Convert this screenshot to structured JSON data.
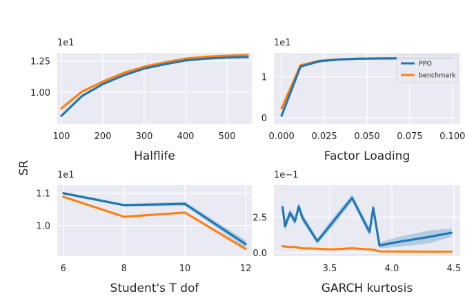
{
  "figure": {
    "ylabel": "SR"
  },
  "colors": {
    "panel_bg": "#eaeaf2",
    "grid": "#ffffff",
    "PPO": "#1f77b4",
    "benchmark": "#ff7f0e",
    "ppo_band": "#9ec2de"
  },
  "chart_data": [
    {
      "type": "line",
      "xlabel": "Halflife",
      "multiplier": "1e1",
      "xlim": [
        90,
        560
      ],
      "ylim": [
        0.745,
        1.315
      ],
      "xticks": [
        100,
        200,
        300,
        400,
        500
      ],
      "xtick_labels": [
        "100",
        "200",
        "300",
        "400",
        "500"
      ],
      "yticks": [
        1.0,
        1.25
      ],
      "ytick_labels": [
        "1.00",
        "1.25"
      ],
      "series": [
        {
          "name": "PPO",
          "x": [
            100,
            150,
            200,
            250,
            300,
            350,
            400,
            450,
            500,
            550
          ],
          "y": [
            0.81,
            0.97,
            1.065,
            1.135,
            1.19,
            1.225,
            1.255,
            1.27,
            1.278,
            1.283
          ],
          "band": [
            0.01,
            0.01,
            0.01,
            0.008,
            0.006,
            0.006,
            0.005,
            0.005,
            0.005,
            0.005
          ]
        },
        {
          "name": "benchmark",
          "x": [
            100,
            150,
            200,
            250,
            300,
            350,
            400,
            450,
            500,
            550
          ],
          "y": [
            0.87,
            1.005,
            1.085,
            1.155,
            1.205,
            1.24,
            1.27,
            1.285,
            1.293,
            1.3
          ]
        }
      ]
    },
    {
      "type": "line",
      "xlabel": "Factor Loading",
      "multiplier": "1e1",
      "xlim": [
        -0.0045,
        0.1045
      ],
      "ylim": [
        -0.15,
        1.58
      ],
      "xticks": [
        0.0,
        0.025,
        0.05,
        0.075,
        0.1
      ],
      "xtick_labels": [
        "0.000",
        "0.025",
        "0.050",
        "0.075",
        "0.100"
      ],
      "yticks": [
        0,
        1
      ],
      "ytick_labels": [
        "0",
        "1"
      ],
      "legend": {
        "position": "top-right",
        "entries": [
          "PPO",
          "benchmark"
        ]
      },
      "series": [
        {
          "name": "PPO",
          "x": [
            0.0,
            0.0111,
            0.0222,
            0.0333,
            0.0444,
            0.0556,
            0.0667,
            0.0778,
            0.0889,
            0.1
          ],
          "y": [
            0.05,
            1.25,
            1.38,
            1.42,
            1.44,
            1.445,
            1.448,
            1.45,
            1.451,
            1.452
          ]
        },
        {
          "name": "benchmark",
          "x": [
            0.0,
            0.0111,
            0.0222,
            0.0333,
            0.0444,
            0.0556,
            0.0667,
            0.0778,
            0.0889,
            0.1
          ],
          "y": [
            0.23,
            1.28,
            1.39,
            1.425,
            1.442,
            1.448,
            1.45,
            1.451,
            1.452,
            1.453
          ]
        }
      ]
    },
    {
      "type": "line",
      "xlabel": "Student's T dof",
      "multiplier": "1e1",
      "xlim": [
        5.8,
        12.2
      ],
      "ylim": [
        0.905,
        1.125
      ],
      "xticks": [
        6,
        8,
        10,
        12
      ],
      "xtick_labels": [
        "6",
        "8",
        "10",
        "12"
      ],
      "yticks": [
        1.0,
        1.1
      ],
      "ytick_labels": [
        "1.0",
        "1.1"
      ],
      "series": [
        {
          "name": "PPO",
          "x": [
            6,
            8,
            10,
            12
          ],
          "y": [
            1.1,
            1.063,
            1.067,
            0.942
          ],
          "band": [
            0.004,
            0.004,
            0.006,
            0.012
          ]
        },
        {
          "name": "benchmark",
          "x": [
            6,
            8,
            10,
            12
          ],
          "y": [
            1.089,
            1.027,
            1.04,
            0.927
          ]
        }
      ]
    },
    {
      "type": "line",
      "xlabel": "GARCH kurtosis",
      "multiplier": "1e−1",
      "xlim": [
        3.05,
        4.55
      ],
      "ylim": [
        -0.25,
        4.75
      ],
      "xticks": [
        3.5,
        4.0,
        4.5
      ],
      "xtick_labels": [
        "3.5",
        "4.0",
        "4.5"
      ],
      "yticks": [
        0.0,
        2.5
      ],
      "ytick_labels": [
        "0.0",
        "2.5"
      ],
      "series": [
        {
          "name": "PPO",
          "x": [
            3.12,
            3.14,
            3.18,
            3.22,
            3.25,
            3.28,
            3.4,
            3.52,
            3.68,
            3.82,
            3.85,
            3.9,
            4.05,
            4.3,
            4.48
          ],
          "y": [
            3.2,
            1.85,
            2.8,
            2.2,
            3.25,
            2.45,
            0.8,
            2.1,
            3.85,
            1.45,
            3.15,
            0.5,
            0.75,
            1.1,
            1.4
          ],
          "band": [
            0.3,
            0.3,
            0.3,
            0.3,
            0.3,
            0.3,
            0.2,
            0.3,
            0.25,
            0.3,
            0.3,
            0.2,
            0.35,
            0.45,
            0.3
          ]
        },
        {
          "name": "benchmark",
          "x": [
            3.12,
            3.18,
            3.22,
            3.25,
            3.28,
            3.4,
            3.52,
            3.68,
            3.82,
            3.85,
            3.9,
            4.05,
            4.3,
            4.48
          ],
          "y": [
            0.45,
            0.38,
            0.4,
            0.33,
            0.3,
            0.27,
            0.22,
            0.3,
            0.22,
            0.2,
            0.08,
            0.07,
            0.06,
            0.06
          ]
        }
      ]
    }
  ]
}
